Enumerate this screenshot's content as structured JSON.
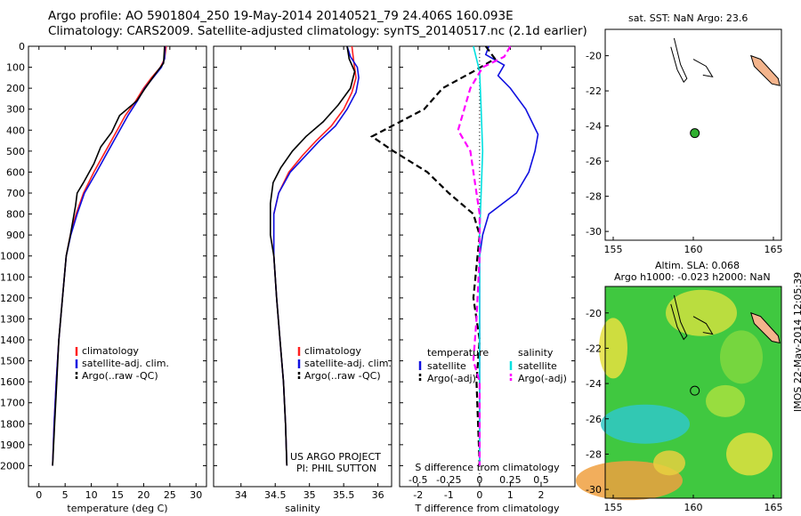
{
  "header": {
    "line1": "Argo profile: AO 5901804_250 19-May-2014 20140521_79 24.406S 160.093E",
    "line2": "Climatology: CARS2009. Satellite-adjusted climatology: synTS_20140517.nc (2.1d earlier)"
  },
  "colors": {
    "climatology": "#ff2020",
    "satellite": "#1010e0",
    "argo": "#000000",
    "sat_salinity": "#00e0e0",
    "argo_salinity": "#ff00ff",
    "land": "#f4b48c",
    "float_marker": "#30b030"
  },
  "map1": {
    "title": "sat. SST: NaN Argo: 23.6",
    "float_lon": 160.093,
    "float_lat": -24.406
  },
  "map2": {
    "title1": "Altim. SLA: 0.068",
    "title2": "Argo h1000: -0.023 h2000: NaN"
  },
  "credits": {
    "project": "US ARGO PROJECT",
    "pi": "PI: PHIL SUTTON",
    "stamp": "IMOS 22-May-2014 12:05:39"
  },
  "chart_data": [
    {
      "type": "line",
      "name": "temperature-profile",
      "xlabel": "temperature (deg C)",
      "xlim": [
        -2,
        32
      ],
      "ylim": [
        2100,
        0
      ],
      "xticks": [
        0,
        5,
        10,
        15,
        20,
        25,
        30
      ],
      "yticks": [
        0,
        100,
        200,
        300,
        400,
        500,
        600,
        700,
        800,
        900,
        1000,
        1100,
        1200,
        1300,
        1400,
        1500,
        1600,
        1700,
        1800,
        1900,
        2000
      ],
      "legend": [
        "climatology",
        "satellite-adj. clim.",
        "Argo(..raw -QC)"
      ],
      "series": [
        {
          "name": "climatology",
          "color": "#ff2020",
          "points": [
            [
              24.3,
              0
            ],
            [
              24,
              60
            ],
            [
              23.2,
              100
            ],
            [
              21.5,
              150
            ],
            [
              20,
              200
            ],
            [
              18.5,
              260
            ],
            [
              16.5,
              330
            ],
            [
              14.5,
              420
            ],
            [
              12.5,
              510
            ],
            [
              10.5,
              600
            ],
            [
              8.5,
              700
            ],
            [
              7.1,
              800
            ],
            [
              6,
              900
            ],
            [
              5.2,
              1000
            ],
            [
              4.5,
              1200
            ],
            [
              3.8,
              1400
            ],
            [
              3.3,
              1600
            ],
            [
              2.9,
              1800
            ],
            [
              2.6,
              2000
            ]
          ]
        },
        {
          "name": "satellite-adj. clim.",
          "color": "#1010e0",
          "points": [
            [
              24.1,
              0
            ],
            [
              24,
              60
            ],
            [
              23.4,
              100
            ],
            [
              21.8,
              150
            ],
            [
              20.2,
              200
            ],
            [
              18.8,
              260
            ],
            [
              17,
              330
            ],
            [
              15,
              420
            ],
            [
              13,
              510
            ],
            [
              11,
              600
            ],
            [
              8.7,
              700
            ],
            [
              7.3,
              800
            ],
            [
              6.1,
              900
            ],
            [
              5.2,
              1000
            ],
            [
              4.5,
              1200
            ],
            [
              3.8,
              1400
            ],
            [
              3.3,
              1600
            ],
            [
              2.9,
              1800
            ],
            [
              2.6,
              2000
            ]
          ]
        },
        {
          "name": "Argo(..raw -QC)",
          "color": "#000000",
          "points": [
            [
              24,
              0
            ],
            [
              23.8,
              80
            ],
            [
              22,
              140
            ],
            [
              20.3,
              200
            ],
            [
              18.7,
              260
            ],
            [
              15.4,
              330
            ],
            [
              13.9,
              410
            ],
            [
              11.8,
              480
            ],
            [
              10.5,
              560
            ],
            [
              8.5,
              650
            ],
            [
              7.3,
              700
            ],
            [
              7,
              760
            ],
            [
              6,
              900
            ],
            [
              5.2,
              1000
            ],
            [
              4.5,
              1200
            ],
            [
              3.8,
              1400
            ],
            [
              3.4,
              1600
            ],
            [
              3,
              1800
            ],
            [
              2.6,
              2000
            ]
          ]
        }
      ]
    },
    {
      "type": "line",
      "name": "salinity-profile",
      "xlabel": "salinity",
      "xlim": [
        33.6,
        36.2
      ],
      "ylim": [
        2100,
        0
      ],
      "xticks": [
        34,
        34.5,
        35,
        35.5,
        36
      ],
      "legend": [
        "climatology",
        "satellite-adj. clim.",
        "Argo(..raw -QC)"
      ],
      "series": [
        {
          "name": "climatology",
          "color": "#ff2020",
          "points": [
            [
              35.62,
              0
            ],
            [
              35.65,
              80
            ],
            [
              35.68,
              150
            ],
            [
              35.62,
              220
            ],
            [
              35.5,
              300
            ],
            [
              35.32,
              380
            ],
            [
              35.1,
              450
            ],
            [
              34.9,
              520
            ],
            [
              34.7,
              600
            ],
            [
              34.55,
              700
            ],
            [
              34.48,
              800
            ],
            [
              34.48,
              1000
            ],
            [
              34.52,
              1200
            ],
            [
              34.57,
              1400
            ],
            [
              34.62,
              1600
            ],
            [
              34.65,
              1800
            ],
            [
              34.67,
              2000
            ]
          ]
        },
        {
          "name": "satellite-adj. clim.",
          "color": "#1010e0",
          "points": [
            [
              35.55,
              0
            ],
            [
              35.6,
              50
            ],
            [
              35.7,
              100
            ],
            [
              35.72,
              150
            ],
            [
              35.68,
              220
            ],
            [
              35.55,
              300
            ],
            [
              35.38,
              380
            ],
            [
              35.15,
              450
            ],
            [
              34.95,
              520
            ],
            [
              34.72,
              600
            ],
            [
              34.55,
              700
            ],
            [
              34.48,
              800
            ],
            [
              34.48,
              1000
            ],
            [
              34.52,
              1200
            ],
            [
              34.57,
              1400
            ],
            [
              34.62,
              1600
            ],
            [
              34.65,
              1800
            ],
            [
              34.67,
              2000
            ]
          ]
        },
        {
          "name": "Argo(..raw -QC)",
          "color": "#000000",
          "points": [
            [
              35.55,
              0
            ],
            [
              35.58,
              60
            ],
            [
              35.66,
              120
            ],
            [
              35.6,
              200
            ],
            [
              35.42,
              280
            ],
            [
              35.2,
              360
            ],
            [
              34.95,
              430
            ],
            [
              34.75,
              500
            ],
            [
              34.58,
              580
            ],
            [
              34.47,
              650
            ],
            [
              34.43,
              750
            ],
            [
              34.43,
              900
            ],
            [
              34.48,
              1000
            ],
            [
              34.52,
              1200
            ],
            [
              34.57,
              1400
            ],
            [
              34.62,
              1600
            ],
            [
              34.65,
              1800
            ],
            [
              34.67,
              2000
            ]
          ]
        }
      ]
    },
    {
      "type": "line",
      "name": "difference-profile",
      "xlabel": "T difference from climatology",
      "xlabel2": "S difference from climatology",
      "xlim": [
        -2.6,
        3.1
      ],
      "ylim": [
        2100,
        0
      ],
      "xticks": [
        -2,
        -1,
        0,
        1,
        2
      ],
      "xticks2": [
        [
          "-0.5",
          -2
        ],
        [
          "-0.25",
          -1
        ],
        [
          "0",
          0
        ],
        [
          "0.25",
          1
        ],
        [
          "0.5",
          2
        ]
      ],
      "legend_temperature": {
        "heading": "temperature",
        "satellite": "satellite",
        "argo": "Argo(-adj)"
      },
      "legend_salinity": {
        "heading": "salinity",
        "satellite": "satellite",
        "argo": "Argo(-adj)"
      },
      "series": [
        {
          "name": "T satellite",
          "color": "#1010e0",
          "points": [
            [
              0.3,
              0
            ],
            [
              0.2,
              40
            ],
            [
              0.8,
              90
            ],
            [
              0.6,
              140
            ],
            [
              1,
              200
            ],
            [
              1.5,
              300
            ],
            [
              1.9,
              420
            ],
            [
              1.8,
              500
            ],
            [
              1.6,
              600
            ],
            [
              1.2,
              700
            ],
            [
              0.3,
              800
            ],
            [
              0.1,
              900
            ],
            [
              0,
              1000
            ],
            [
              0,
              2000
            ]
          ]
        },
        {
          "name": "T Argo(-adj)",
          "color": "#000000",
          "dash": true,
          "points": [
            [
              0.2,
              0
            ],
            [
              0.5,
              60
            ],
            [
              -0.2,
              120
            ],
            [
              -1.2,
              200
            ],
            [
              -1.8,
              300
            ],
            [
              -3.5,
              430
            ],
            [
              -2.8,
              500
            ],
            [
              -1.7,
              600
            ],
            [
              -1,
              700
            ],
            [
              -0.2,
              800
            ],
            [
              0,
              900
            ],
            [
              -0.2,
              1200
            ],
            [
              0,
              1400
            ],
            [
              -0.1,
              1600
            ],
            [
              0,
              2000
            ]
          ]
        },
        {
          "name": "S satellite",
          "color": "#00e0e0",
          "points": [
            [
              -0.2,
              0
            ],
            [
              -0.1,
              60
            ],
            [
              0,
              120
            ],
            [
              0.05,
              300
            ],
            [
              0.1,
              500
            ],
            [
              0.05,
              700
            ],
            [
              0,
              900
            ],
            [
              0,
              1200
            ],
            [
              0,
              2000
            ]
          ]
        },
        {
          "name": "S Argo(-adj)",
          "color": "#ff00ff",
          "dash": true,
          "points": [
            [
              1,
              0
            ],
            [
              0.8,
              50
            ],
            [
              0.1,
              100
            ],
            [
              -0.3,
              200
            ],
            [
              -0.5,
              300
            ],
            [
              -0.7,
              400
            ],
            [
              -0.3,
              500
            ],
            [
              -0.2,
              600
            ],
            [
              -0.1,
              700
            ],
            [
              0,
              800
            ],
            [
              0,
              1000
            ],
            [
              -0.1,
              1300
            ],
            [
              -0.2,
              1500
            ],
            [
              0,
              1600
            ],
            [
              0,
              2000
            ]
          ]
        }
      ]
    },
    {
      "type": "scatter",
      "name": "sst-map",
      "xlim": [
        154.5,
        165.5
      ],
      "ylim": [
        -30.5,
        -18.5
      ],
      "xticks": [
        155,
        160,
        165
      ],
      "yticks": [
        -20,
        -22,
        -24,
        -26,
        -28,
        -30
      ],
      "points": [
        [
          160.093,
          -24.406
        ]
      ]
    },
    {
      "type": "heatmap",
      "name": "sla-map",
      "xlim": [
        154.5,
        165.5
      ],
      "ylim": [
        -30.5,
        -18.5
      ],
      "xticks": [
        155,
        160,
        165
      ],
      "yticks": [
        -20,
        -22,
        -24,
        -26,
        -28,
        -30
      ],
      "points": [
        [
          160.093,
          -24.406
        ]
      ]
    }
  ]
}
